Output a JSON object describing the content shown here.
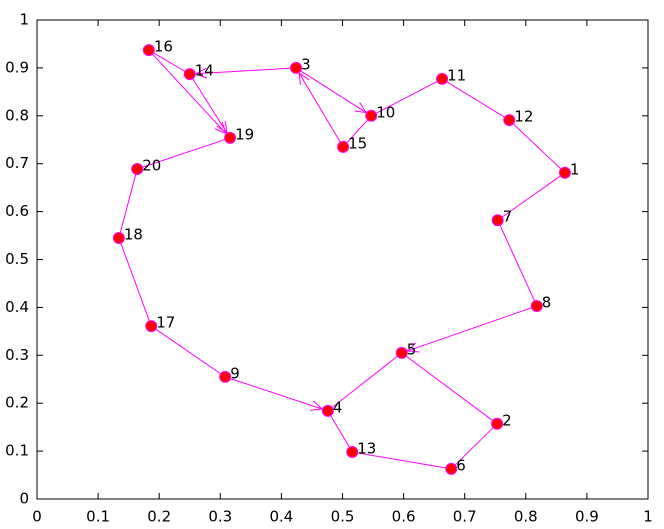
{
  "chart_data": {
    "type": "scatter",
    "labels": [
      1,
      2,
      3,
      4,
      5,
      6,
      7,
      8,
      9,
      10,
      11,
      12,
      13,
      14,
      15,
      16,
      17,
      18,
      19,
      20
    ],
    "x": [
      0.864,
      0.753,
      0.424,
      0.476,
      0.597,
      0.678,
      0.754,
      0.818,
      0.308,
      0.547,
      0.663,
      0.773,
      0.516,
      0.25,
      0.501,
      0.183,
      0.187,
      0.134,
      0.316,
      0.164
    ],
    "y": [
      0.681,
      0.157,
      0.9,
      0.184,
      0.305,
      0.063,
      0.582,
      0.403,
      0.255,
      0.8,
      0.877,
      0.791,
      0.098,
      0.887,
      0.735,
      0.937,
      0.361,
      0.545,
      0.754,
      0.689
    ],
    "color": "#ff0000",
    "edge_color": "#ff00ff",
    "edges": [
      {
        "from": 1,
        "to": 12,
        "arrow": false
      },
      {
        "from": 12,
        "to": 11,
        "arrow": false
      },
      {
        "from": 11,
        "to": 10,
        "arrow": false
      },
      {
        "from": 10,
        "to": 15,
        "arrow": false
      },
      {
        "from": 15,
        "to": 3,
        "arrow": true
      },
      {
        "from": 3,
        "to": 10,
        "arrow": true
      },
      {
        "from": 3,
        "to": 14,
        "arrow": true
      },
      {
        "from": 14,
        "to": 16,
        "arrow": false
      },
      {
        "from": 16,
        "to": 19,
        "arrow": true
      },
      {
        "from": 14,
        "to": 19,
        "arrow": true
      },
      {
        "from": 19,
        "to": 20,
        "arrow": false
      },
      {
        "from": 20,
        "to": 18,
        "arrow": false
      },
      {
        "from": 18,
        "to": 17,
        "arrow": false
      },
      {
        "from": 17,
        "to": 9,
        "arrow": false
      },
      {
        "from": 9,
        "to": 4,
        "arrow": true
      },
      {
        "from": 4,
        "to": 13,
        "arrow": false
      },
      {
        "from": 13,
        "to": 6,
        "arrow": false
      },
      {
        "from": 6,
        "to": 2,
        "arrow": false
      },
      {
        "from": 2,
        "to": 5,
        "arrow": false
      },
      {
        "from": 5,
        "to": 4,
        "arrow": false
      },
      {
        "from": 8,
        "to": 5,
        "arrow": true
      },
      {
        "from": 7,
        "to": 8,
        "arrow": false
      },
      {
        "from": 1,
        "to": 7,
        "arrow": false
      }
    ],
    "xlim": [
      0,
      1
    ],
    "ylim": [
      0,
      1
    ],
    "xticks": [
      0,
      0.1,
      0.2,
      0.3,
      0.4,
      0.5,
      0.6,
      0.7,
      0.8,
      0.9,
      1
    ],
    "yticks": [
      0,
      0.1,
      0.2,
      0.3,
      0.4,
      0.5,
      0.6,
      0.7,
      0.8,
      0.9,
      1
    ]
  }
}
